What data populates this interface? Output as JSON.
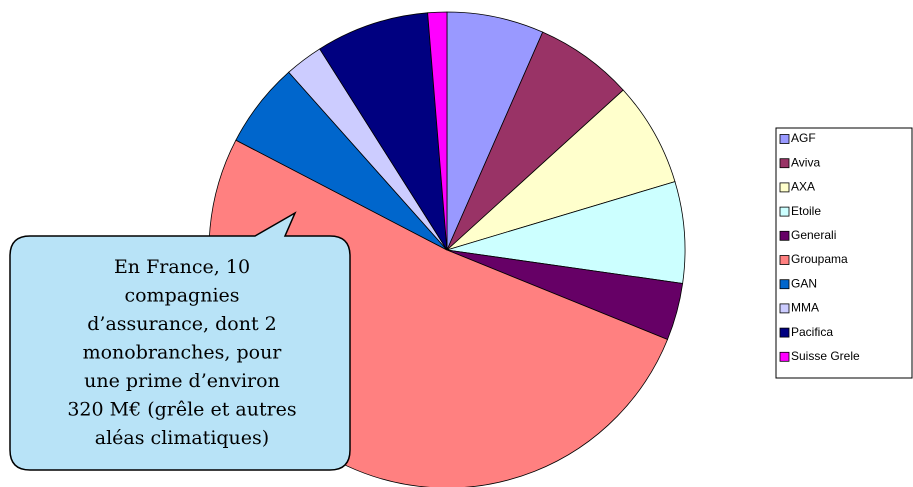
{
  "chart_data": {
    "type": "pie",
    "categories": [
      "AGF",
      "Aviva",
      "AXA",
      "Etoile",
      "Generali",
      "Groupama",
      "GAN",
      "MMA",
      "Pacifica",
      "Suisse Grele"
    ],
    "values": [
      6.6,
      6.7,
      7.1,
      6.9,
      3.9,
      51.6,
      5.8,
      2.6,
      7.7,
      1.3
    ],
    "colors": [
      "#9999ff",
      "#993366",
      "#ffffcc",
      "#ccffff",
      "#660066",
      "#ff8080",
      "#0066cc",
      "#ccccff",
      "#000080",
      "#ff00ff"
    ],
    "legend": "right",
    "annotation": [
      "En France, 10",
      "compagnies",
      "d’assurance, dont 2",
      "monobranches, pour",
      "une prime d’environ",
      "320 M€ (grêle et autres",
      "aléas climatiques)"
    ]
  }
}
